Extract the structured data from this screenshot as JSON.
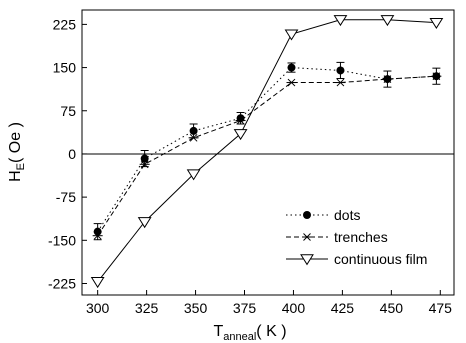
{
  "chart_data": {
    "type": "line",
    "xlabel": "T",
    "xlabel_sub": "anneal",
    "xlabel_unit": "( K )",
    "ylabel": "H",
    "ylabel_sub": "E",
    "ylabel_unit": "( Oe )",
    "xlim": [
      292,
      482
    ],
    "ylim": [
      -245,
      250
    ],
    "x_ticks": [
      300,
      325,
      350,
      375,
      400,
      425,
      450,
      475
    ],
    "y_ticks": [
      -225,
      -150,
      -75,
      0,
      75,
      150,
      225
    ],
    "zero_line": true,
    "legend_position": "lower-right",
    "series": [
      {
        "name": "dots",
        "style": "dotted",
        "marker": "filled-circle",
        "color": "#000000",
        "x": [
          300,
          324,
          349,
          373,
          399,
          424,
          448,
          473
        ],
        "y": [
          -135,
          -8,
          40,
          62,
          150,
          145,
          130,
          135
        ],
        "err": [
          14,
          14,
          12,
          10,
          8,
          14,
          14,
          14
        ]
      },
      {
        "name": "trenches",
        "style": "dashed",
        "marker": "asterisk",
        "color": "#000000",
        "x": [
          300,
          324,
          349,
          373,
          399,
          424,
          448,
          473
        ],
        "y": [
          -142,
          -18,
          28,
          58,
          124,
          124,
          130,
          135
        ],
        "err": [
          0,
          0,
          0,
          0,
          0,
          0,
          0,
          0
        ]
      },
      {
        "name": "continuous film",
        "style": "solid",
        "marker": "open-triangle-down",
        "color": "#000000",
        "x": [
          300,
          324,
          349,
          373,
          399,
          424,
          448,
          473
        ],
        "y": [
          -222,
          -118,
          -35,
          35,
          208,
          233,
          233,
          228
        ],
        "err": [
          0,
          0,
          0,
          0,
          0,
          0,
          0,
          0
        ]
      }
    ]
  }
}
